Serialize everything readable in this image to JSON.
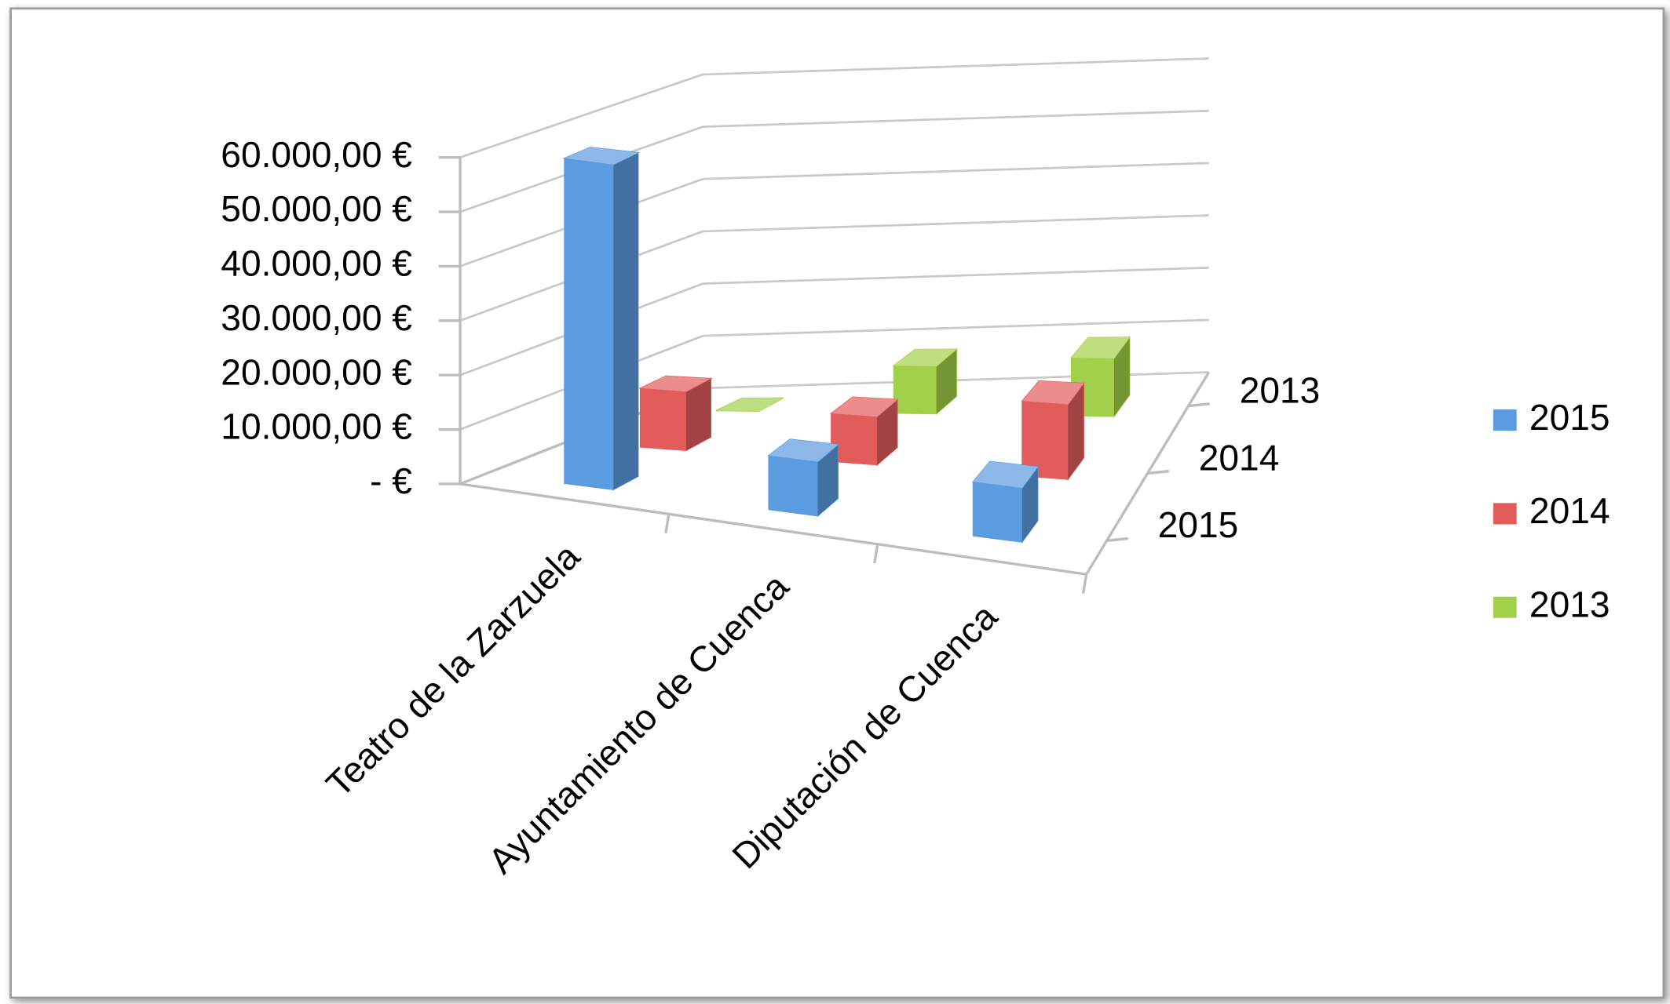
{
  "chart_data": {
    "type": "bar3d",
    "categories": [
      "Teatro de la Zarzuela",
      "Ayuntamiento de Cuenca",
      "Diputación de Cuenca"
    ],
    "series": [
      {
        "name": "2015",
        "color": "#5b9be0",
        "values": [
          60000,
          10000,
          10000
        ]
      },
      {
        "name": "2014",
        "color": "#e25c5c",
        "values": [
          11000,
          9000,
          14000
        ]
      },
      {
        "name": "2013",
        "color": "#a2d04a",
        "values": [
          0,
          9000,
          11000
        ]
      }
    ],
    "ylim": [
      0,
      60000
    ],
    "yticks": [
      {
        "value": 0,
        "label": "-   €"
      },
      {
        "value": 10000,
        "label": "10.000,00 €"
      },
      {
        "value": 20000,
        "label": "20.000,00 €"
      },
      {
        "value": 30000,
        "label": "30.000,00 €"
      },
      {
        "value": 40000,
        "label": "40.000,00 €"
      },
      {
        "value": 50000,
        "label": "50.000,00 €"
      },
      {
        "value": 60000,
        "label": "60.000,00 €"
      }
    ],
    "grid": true,
    "legend": "right"
  }
}
